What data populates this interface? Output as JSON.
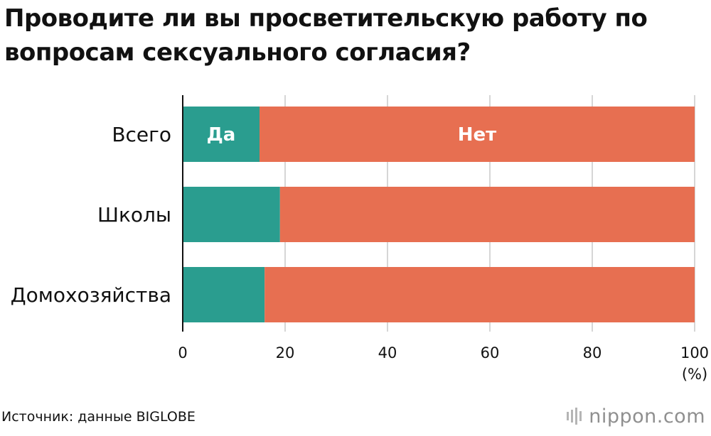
{
  "title": "Проводите ли вы просветительскую работу по вопросам сексуального согласия?",
  "source": "Источник: данные BIGLOBE",
  "brand": "nippon.com",
  "colors": {
    "yes": "#2a9d8f",
    "no": "#e76f51",
    "grid": "#c8c8c8",
    "axis": "#111111"
  },
  "chart_data": {
    "type": "bar",
    "orientation": "horizontal",
    "stacked": true,
    "title": "Проводите ли вы просветительскую работу по вопросам сексуального согласия?",
    "categories": [
      "Всего",
      "Школы",
      "Домохозяйства"
    ],
    "series": [
      {
        "name": "Да",
        "values": [
          15,
          19,
          16
        ]
      },
      {
        "name": "Нет",
        "values": [
          85,
          81,
          84
        ]
      }
    ],
    "xlim": [
      0,
      100
    ],
    "xticks": [
      0,
      20,
      40,
      60,
      80,
      100
    ],
    "xunit": "(%)",
    "grid": true,
    "legend": "inline labels on first bar"
  }
}
